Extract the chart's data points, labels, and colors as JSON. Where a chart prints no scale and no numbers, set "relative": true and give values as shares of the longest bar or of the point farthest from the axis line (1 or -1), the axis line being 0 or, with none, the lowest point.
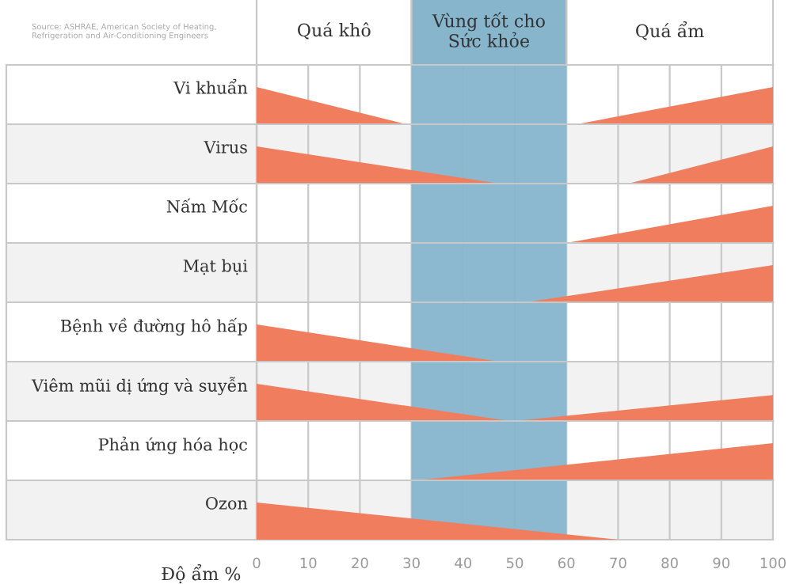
{
  "chart_data": [
    {
      "type": "area",
      "title": "Vi khuẩn",
      "relative": true,
      "xlim": [
        0,
        100
      ],
      "xticks": [
        0,
        10,
        20,
        30,
        40,
        50,
        60,
        70,
        80,
        90,
        100
      ],
      "tick_labels": false,
      "grid": "x",
      "annotations": [
        "Source: ASHRAE, American Society of Heating,\nRefrigeration and Air-Conditioning Engineers",
        "Quá khô",
        "Quá ẩm"
      ],
      "bands": [
        {
          "axis": "x",
          "from": 30,
          "to": 60,
          "label": "Vùng tốt cho\nSức khỏe",
          "color": "#86b5cc"
        }
      ],
      "series": [
        {
          "color": "#f07e5e",
          "x": [
            0,
            29
          ],
          "values": [
            1,
            0
          ]
        },
        {
          "color": "#f07e5e",
          "x": [
            62,
            100
          ],
          "values": [
            0,
            1
          ]
        }
      ]
    },
    {
      "type": "area",
      "title": "Virus",
      "relative": true,
      "xlim": [
        0,
        100
      ],
      "xticks": [
        0,
        10,
        20,
        30,
        40,
        50,
        60,
        70,
        80,
        90,
        100
      ],
      "tick_labels": false,
      "grid": "x",
      "bands": [
        {
          "axis": "x",
          "from": 30,
          "to": 60,
          "color": "#86b5cc"
        }
      ],
      "series": [
        {
          "color": "#f07e5e",
          "x": [
            0,
            47
          ],
          "values": [
            1,
            0
          ]
        },
        {
          "color": "#f07e5e",
          "x": [
            72,
            100
          ],
          "values": [
            0,
            1
          ]
        }
      ]
    },
    {
      "type": "area",
      "title": "Nấm Mốc",
      "relative": true,
      "xlim": [
        0,
        100
      ],
      "xticks": [
        0,
        10,
        20,
        30,
        40,
        50,
        60,
        70,
        80,
        90,
        100
      ],
      "tick_labels": false,
      "grid": "x",
      "bands": [
        {
          "axis": "x",
          "from": 30,
          "to": 60,
          "color": "#86b5cc"
        }
      ],
      "series": [
        {
          "color": "#f07e5e",
          "x": [
            60,
            100
          ],
          "values": [
            0,
            1
          ]
        }
      ]
    },
    {
      "type": "area",
      "title": "Mạt bụi",
      "relative": true,
      "xlim": [
        0,
        100
      ],
      "xticks": [
        0,
        10,
        20,
        30,
        40,
        50,
        60,
        70,
        80,
        90,
        100
      ],
      "tick_labels": false,
      "grid": "x",
      "bands": [
        {
          "axis": "x",
          "from": 30,
          "to": 60,
          "color": "#86b5cc"
        }
      ],
      "series": [
        {
          "color": "#f07e5e",
          "x": [
            52,
            100
          ],
          "values": [
            0,
            1
          ]
        }
      ]
    },
    {
      "type": "area",
      "title": "Bệnh về đường hô hấp",
      "relative": true,
      "xlim": [
        0,
        100
      ],
      "xticks": [
        0,
        10,
        20,
        30,
        40,
        50,
        60,
        70,
        80,
        90,
        100
      ],
      "tick_labels": false,
      "grid": "x",
      "bands": [
        {
          "axis": "x",
          "from": 30,
          "to": 60,
          "color": "#86b5cc"
        }
      ],
      "series": [
        {
          "color": "#f07e5e",
          "x": [
            0,
            47
          ],
          "values": [
            1,
            0
          ]
        }
      ]
    },
    {
      "type": "area",
      "title": "Viêm mũi dị ứng và suyễn",
      "relative": true,
      "xlim": [
        0,
        100
      ],
      "xticks": [
        0,
        10,
        20,
        30,
        40,
        50,
        60,
        70,
        80,
        90,
        100
      ],
      "tick_labels": false,
      "grid": "x",
      "bands": [
        {
          "axis": "x",
          "from": 30,
          "to": 60,
          "color": "#86b5cc"
        }
      ],
      "series": [
        {
          "color": "#f07e5e",
          "x": [
            0,
            49
          ],
          "values": [
            1,
            0
          ]
        },
        {
          "color": "#f07e5e",
          "x": [
            50,
            100
          ],
          "values": [
            0,
            0.7
          ]
        }
      ]
    },
    {
      "type": "area",
      "title": "Phản ứng hóa học",
      "relative": true,
      "xlim": [
        0,
        100
      ],
      "xticks": [
        0,
        10,
        20,
        30,
        40,
        50,
        60,
        70,
        80,
        90,
        100
      ],
      "tick_labels": false,
      "grid": "x",
      "bands": [
        {
          "axis": "x",
          "from": 30,
          "to": 60,
          "color": "#86b5cc"
        }
      ],
      "series": [
        {
          "color": "#f07e5e",
          "x": [
            31,
            100
          ],
          "values": [
            0,
            1
          ]
        }
      ]
    },
    {
      "type": "area",
      "title": "Ozon",
      "relative": true,
      "xlim": [
        0,
        100
      ],
      "xticks": [
        0,
        10,
        20,
        30,
        40,
        50,
        60,
        70,
        80,
        90,
        100
      ],
      "tick_labels": "x",
      "xlabel": "Độ ẩm %",
      "grid": "x",
      "bands": [
        {
          "axis": "x",
          "from": 30,
          "to": 60,
          "color": "#86b5cc"
        }
      ],
      "series": [
        {
          "color": "#f07e5e",
          "x": [
            0,
            70
          ],
          "values": [
            1,
            0
          ]
        }
      ]
    }
  ]
}
